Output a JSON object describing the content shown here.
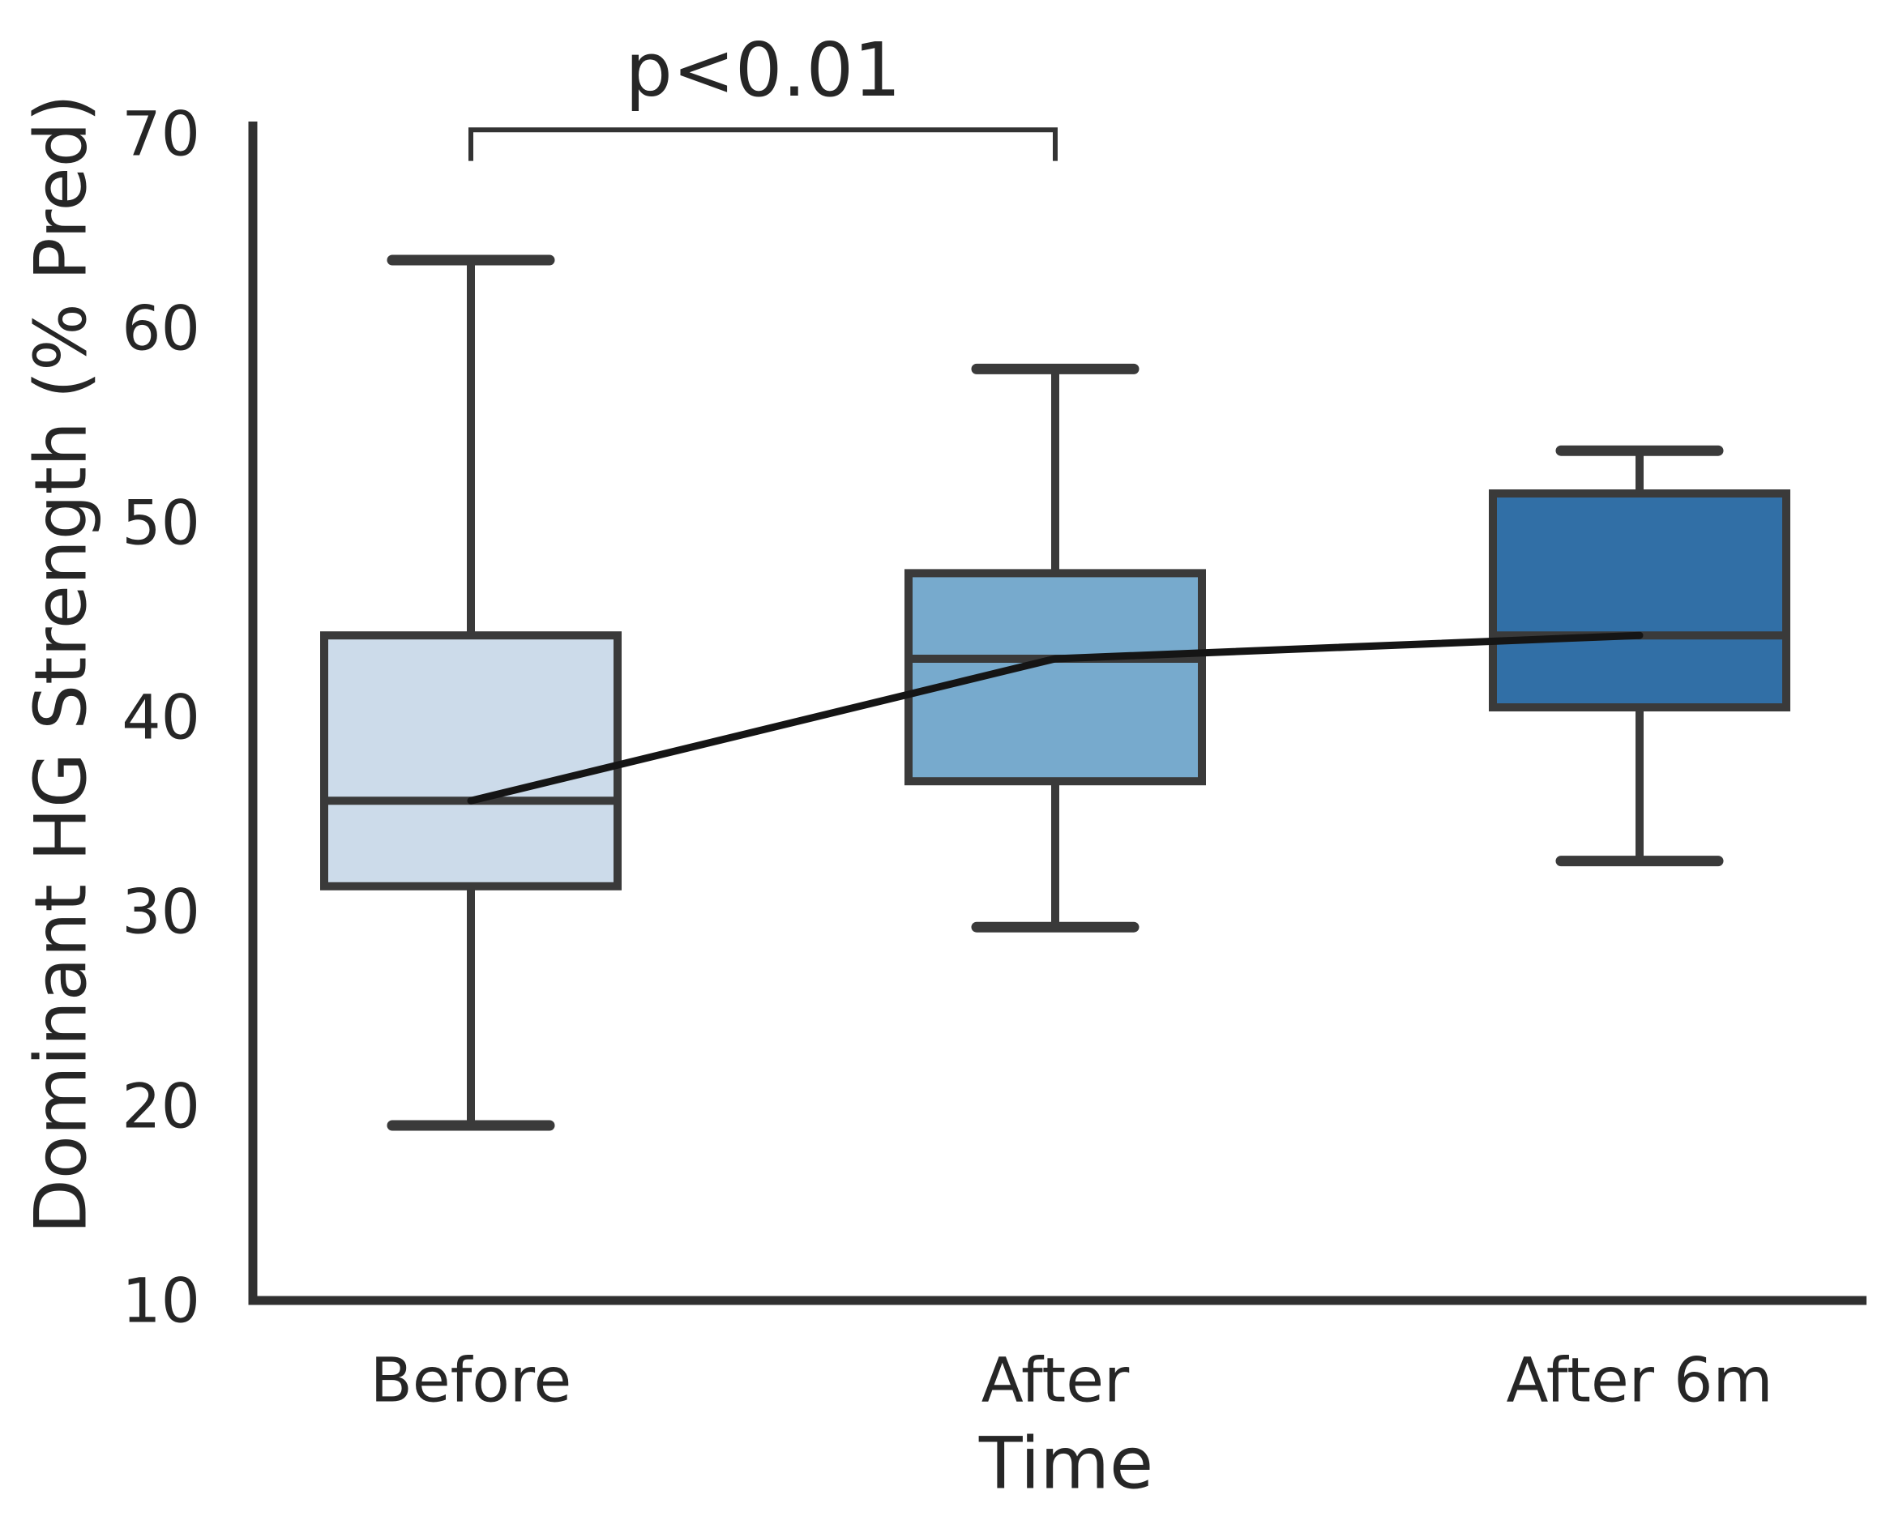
{
  "figure": {
    "background": "#ffffff",
    "text_color": "#262626",
    "axis_color": "#303030",
    "box_line_color": "#3a3a3a"
  },
  "chart_data": {
    "type": "box",
    "title": "",
    "xlabel": "Time",
    "ylabel": "Dominant HG Strength (% Pred)",
    "categories": [
      "Before",
      "After",
      "After 6m"
    ],
    "ylim": [
      10,
      70
    ],
    "yticks": [
      70,
      60,
      50,
      40,
      30,
      20,
      10
    ],
    "grid": false,
    "legend": "none",
    "boxes": [
      {
        "category": "Before",
        "whisker_low": 19.0,
        "q1": 31.3,
        "median": 35.7,
        "q3": 44.2,
        "whisker_high": 63.5,
        "fill": "#ccdbea"
      },
      {
        "category": "After",
        "whisker_low": 29.2,
        "q1": 36.7,
        "median": 43.0,
        "q3": 47.4,
        "whisker_high": 57.9,
        "fill": "#77aacd"
      },
      {
        "category": "After 6m",
        "whisker_low": 32.6,
        "q1": 40.5,
        "median": 44.2,
        "q3": 51.5,
        "whisker_high": 53.7,
        "fill": "#316fa6"
      }
    ],
    "trend_line": {
      "series_name": "median connector",
      "values": [
        35.7,
        43.0,
        44.2
      ],
      "color": "#151515"
    },
    "annotation": {
      "label": "p<0.01",
      "from_category": "Before",
      "to_category": "After",
      "bracket_y": 70.2,
      "tick_drop": 1.6
    }
  }
}
